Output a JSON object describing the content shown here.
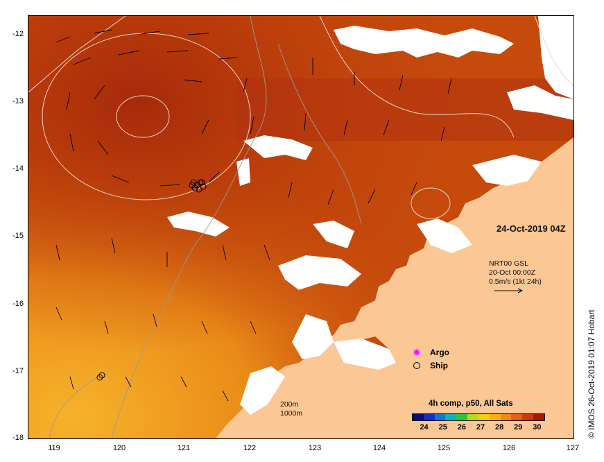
{
  "map": {
    "date_label": "24-Oct-2019 04Z",
    "lat_ticks": [
      "-12",
      "-13",
      "-14",
      "-15",
      "-16",
      "-17",
      "-18"
    ],
    "lon_ticks": [
      "119",
      "120",
      "121",
      "122",
      "123",
      "124",
      "125",
      "126",
      "127"
    ],
    "lat_range": [
      -18,
      -11.75
    ],
    "lon_range": [
      118.65,
      127
    ],
    "current_info": {
      "line1": "NRT00 GSL",
      "line2": "20-Oct 00:00Z",
      "line3": "0.5m/s (1kt 24h)"
    },
    "markers_legend": [
      {
        "label": "Argo",
        "color": "#ff00ff"
      },
      {
        "label": "Ship",
        "color": "#000000"
      }
    ],
    "depth_contours": {
      "line1": "200m",
      "line2": "1000m"
    },
    "colorbar": {
      "title": "4h comp, p50, All Sats",
      "ticks": [
        "24",
        "25",
        "26",
        "27",
        "28",
        "29",
        "30"
      ],
      "colors": [
        "#0a0a7a",
        "#1030c8",
        "#0a7ad0",
        "#00b8c0",
        "#2ec24a",
        "#b8d81a",
        "#f0d010",
        "#f7b01a",
        "#f08a10",
        "#e06010",
        "#c83c0a",
        "#a81808"
      ]
    },
    "credit": "© IMOS 26-Oct-2019 01:07 Hobart",
    "colors": {
      "land": "#fbc795",
      "no_data": "#ffffff",
      "sst_warm": "#c0400a",
      "sst_cool": "#f2a020",
      "contour": "#e0d8d0"
    }
  }
}
